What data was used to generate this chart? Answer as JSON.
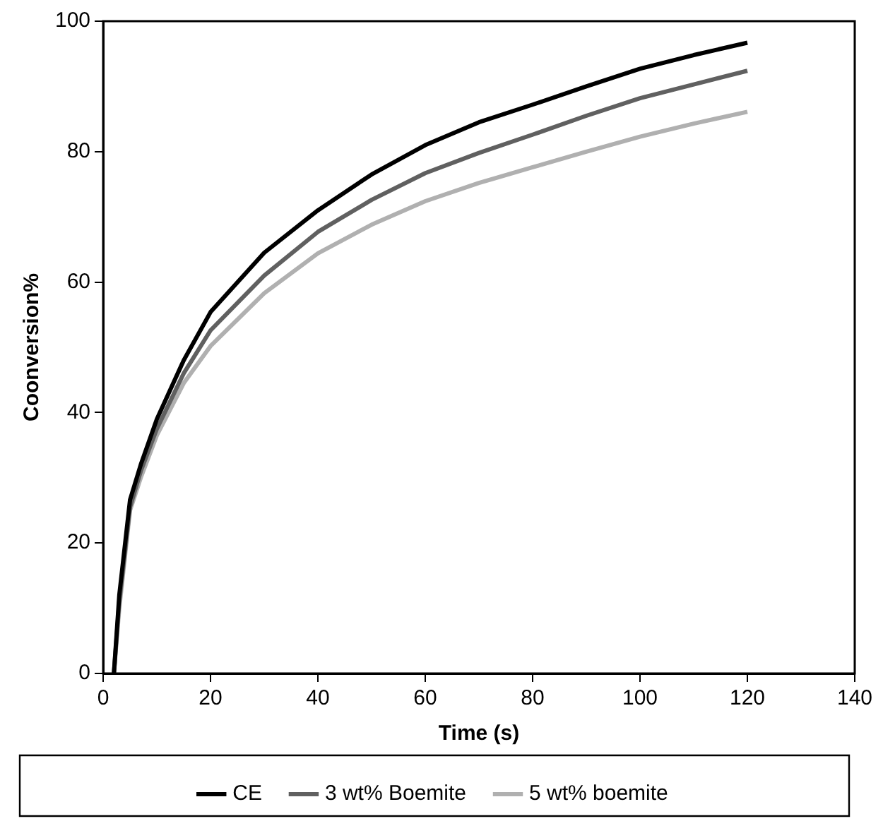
{
  "chart_data": {
    "type": "line",
    "xlabel": "Time (s)",
    "ylabel": "Coonversion%",
    "x": [
      2,
      3,
      5,
      7,
      10,
      15,
      20,
      30,
      40,
      50,
      60,
      70,
      80,
      90,
      100,
      110,
      120
    ],
    "series": [
      {
        "name": "CE",
        "color": "#000000",
        "values": [
          0,
          12,
          26.6,
          32,
          39,
          48,
          55.4,
          64.5,
          71,
          76.5,
          81,
          84.5,
          87.2,
          90,
          92.7,
          94.8,
          96.7
        ]
      },
      {
        "name": "3 wt% Boemite",
        "color": "#606060",
        "values": [
          0,
          11,
          25.5,
          31,
          37.5,
          46,
          52.6,
          61,
          67.7,
          72.6,
          76.7,
          79.8,
          82.6,
          85.5,
          88.2,
          90.3,
          92.4
        ]
      },
      {
        "name": "5 wt% boemite",
        "color": "#b0b0b0",
        "values": [
          0,
          10,
          25,
          30,
          36.5,
          44.5,
          50.2,
          58.3,
          64.4,
          68.8,
          72.4,
          75.2,
          77.6,
          80,
          82.3,
          84.3,
          86.1
        ]
      }
    ],
    "xlim": [
      0,
      140
    ],
    "xticks": [
      0,
      20,
      40,
      60,
      80,
      100,
      120,
      140
    ],
    "ylim": [
      0,
      100
    ],
    "yticks": [
      0,
      20,
      40,
      60,
      80,
      100
    ],
    "grid": false,
    "legend": "bottom",
    "marker": "none",
    "line_style": "solid"
  }
}
